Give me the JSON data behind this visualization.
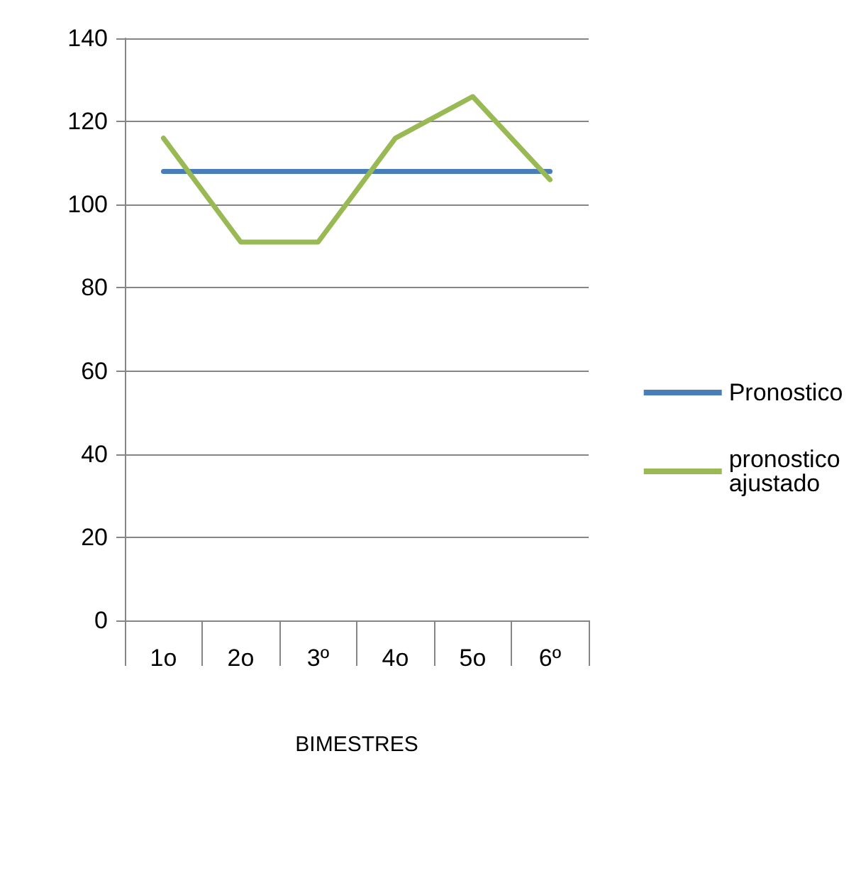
{
  "chart_data": {
    "type": "line",
    "xlabel": "BIMESTRES",
    "categories": [
      "1o",
      "2o",
      "3º",
      "4o",
      "5o",
      "6º"
    ],
    "series": [
      {
        "name": "Pronostico",
        "color": "#4a7ebb",
        "values": [
          108,
          108,
          108,
          108,
          108,
          108
        ]
      },
      {
        "name": "pronostico ajustado",
        "color": "#98b954",
        "values": [
          116,
          91,
          91,
          116,
          126,
          106
        ]
      }
    ],
    "ylim": [
      0,
      140
    ],
    "yticks": [
      0,
      20,
      40,
      60,
      80,
      100,
      120,
      140
    ],
    "grid": "y",
    "legend": "right",
    "marker": "none",
    "line_style": "solid"
  }
}
